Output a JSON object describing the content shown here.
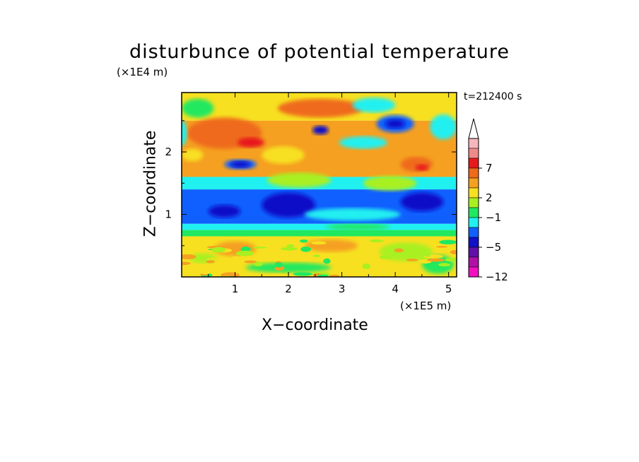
{
  "chart_data": {
    "type": "heatmap",
    "title": "disturbunce of potential temperature",
    "xlabel": "X−coordinate",
    "ylabel": "Z−coordinate",
    "x_unit": "(×1E5 m)",
    "y_unit": "(×1E4 m)",
    "time_label": "t=212400 s",
    "x_ticks": [
      "1",
      "2",
      "3",
      "4",
      "5"
    ],
    "y_ticks": [
      "1",
      "2"
    ],
    "xlim": [
      0,
      5.15
    ],
    "ylim": [
      0,
      2.95
    ],
    "colorbar": {
      "tick_labels": [
        "7",
        "2",
        "−1",
        "−5",
        "−12"
      ],
      "tick_values": [
        7,
        2,
        -1,
        -5,
        -12
      ],
      "extend": "max",
      "levels": [
        {
          "color": "#f5b7bd"
        },
        {
          "color": "#f08a8a"
        },
        {
          "color": "#e8191b"
        },
        {
          "color": "#ef6a1a"
        },
        {
          "color": "#f5a020"
        },
        {
          "color": "#f7e020"
        },
        {
          "color": "#a8f020"
        },
        {
          "color": "#20e860"
        },
        {
          "color": "#20f0f0"
        },
        {
          "color": "#1060ff"
        },
        {
          "color": "#1010c8"
        },
        {
          "color": "#6010a8"
        },
        {
          "color": "#b010a8"
        },
        {
          "color": "#f010c0"
        }
      ]
    },
    "field_bands": [
      {
        "z_range": [
          2.5,
          2.95
        ],
        "dominant": "yellow / orange with blue patches"
      },
      {
        "z_range": [
          1.6,
          2.5
        ],
        "dominant": "orange / red with cyan and blue streaks"
      },
      {
        "z_range": [
          0.85,
          1.4
        ],
        "dominant": "blue / dark blue"
      },
      {
        "z_range": [
          0.65,
          0.85
        ],
        "dominant": "cyan / green"
      },
      {
        "z_range": [
          0.0,
          0.65
        ],
        "dominant": "yellow / orange / light green"
      }
    ]
  }
}
